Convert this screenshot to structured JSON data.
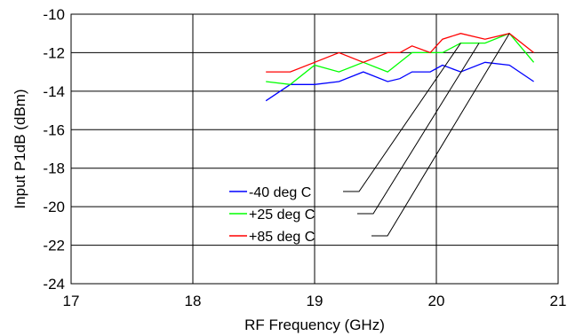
{
  "chart_data": {
    "type": "line",
    "title": "",
    "xlabel": "RF Frequency (GHz)",
    "ylabel": "Input P1dB (dBm)",
    "xlim": [
      17,
      21
    ],
    "ylim": [
      -24,
      -10
    ],
    "x_ticks": [
      17,
      18,
      19,
      20,
      21
    ],
    "y_ticks": [
      -24,
      -22,
      -20,
      -18,
      -16,
      -14,
      -12,
      -10
    ],
    "grid": true,
    "legend_position": "center",
    "series": [
      {
        "name": "-40 deg C",
        "color": "#0000ff",
        "x": [
          18.6,
          18.8,
          19.0,
          19.2,
          19.4,
          19.6,
          19.7,
          19.8,
          19.95,
          20.05,
          20.2,
          20.4,
          20.6,
          20.8
        ],
        "y": [
          -14.5,
          -13.65,
          -13.65,
          -13.5,
          -13.0,
          -13.5,
          -13.35,
          -13.0,
          -13.0,
          -12.65,
          -13.0,
          -12.5,
          -12.65,
          -13.5
        ]
      },
      {
        "name": "+25 deg C",
        "color": "#00ff00",
        "x": [
          18.6,
          18.8,
          19.0,
          19.2,
          19.4,
          19.6,
          19.8,
          19.95,
          20.05,
          20.2,
          20.4,
          20.6,
          20.8
        ],
        "y": [
          -13.5,
          -13.65,
          -12.65,
          -13.0,
          -12.5,
          -13.0,
          -12.0,
          -12.0,
          -12.0,
          -11.5,
          -11.5,
          -11.0,
          -12.5
        ]
      },
      {
        "name": "+85 deg C",
        "color": "#ff0000",
        "x": [
          18.6,
          18.8,
          19.0,
          19.2,
          19.4,
          19.6,
          19.7,
          19.8,
          19.95,
          20.05,
          20.2,
          20.4,
          20.6,
          20.8
        ],
        "y": [
          -13.0,
          -13.0,
          -12.5,
          -12.0,
          -12.5,
          -12.0,
          -12.0,
          -11.65,
          -12.0,
          -11.3,
          -11.0,
          -11.3,
          -11.0,
          -12.0
        ]
      }
    ],
    "leader_targets": [
      [
        20.2,
        -11.5
      ],
      [
        20.35,
        -11.5
      ],
      [
        20.6,
        -11.0
      ]
    ]
  }
}
